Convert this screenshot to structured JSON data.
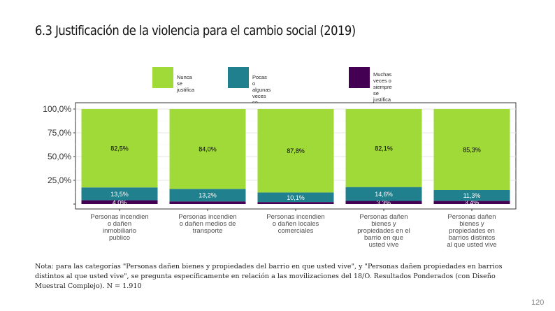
{
  "page": {
    "title": "6.3 Justificación de la violencia para el cambio social (2019)",
    "note": "Nota: para las categorías \"Personas dañen bienes y propiedades del barrio en que usted vive\", y \"Personas dañen propiedades en barrios distintos al que usted vive\", se pregunta específicamente en relación a las movilizaciones del 18/O. Resultados Ponderados (con Diseño Muestral Complejo). N = 1.910",
    "page_number": "120"
  },
  "chart_data": {
    "type": "bar",
    "stacked": true,
    "title": "",
    "xlabel": "",
    "ylabel": "",
    "ylim": [
      0,
      100
    ],
    "y_ticks": [
      "25,0%",
      "50,0%",
      "75,0%",
      "100,0%"
    ],
    "y_tick_values": [
      25,
      50,
      75,
      100
    ],
    "grid": true,
    "legend_position": "top",
    "categories": [
      "Personas incendien o dañen inmobiliario publico",
      "Personas incendien o dañen medios de transporte",
      "Personas incendien o dañen locales comerciales",
      "Personas dañen bienes y propiedades en el barrio en que usted vive",
      "Personas dañen bienes y propiedades en barrios distintos al que usted vive"
    ],
    "category_lines": [
      [
        "Personas incendien",
        "o dañen",
        "inmobiliario",
        "publico"
      ],
      [
        "Personas incendien",
        "o dañen medios de",
        "transporte"
      ],
      [
        "Personas incendien",
        "o dañen locales",
        "comerciales"
      ],
      [
        "Personas dañen",
        "bienes y",
        "propiedades en el",
        "barrio en que",
        "usted vive"
      ],
      [
        "Personas dañen",
        "bienes y",
        "propiedades en",
        "barrios distintos",
        "al que usted vive"
      ]
    ],
    "series": [
      {
        "name": "Muchas veces o siempre se justifica",
        "name_lines": [
          "Muchas veces o siempre se",
          "justifica"
        ],
        "color": "#440154",
        "label_color": "#ffffff",
        "values": [
          4.0,
          2.8,
          2.1,
          3.3,
          3.4
        ],
        "labels": [
          "4,0%",
          "",
          "",
          "3,3%",
          "3,4%"
        ]
      },
      {
        "name": "Pocas o algunas veces se justifica",
        "name_lines": [
          "Pocas o algunas veces se justifica"
        ],
        "color": "#21808d",
        "label_color": "#ffffff",
        "values": [
          13.5,
          13.2,
          10.1,
          14.6,
          11.3
        ],
        "labels": [
          "13,5%",
          "13,2%",
          "10,1%",
          "14,6%",
          "11,3%"
        ]
      },
      {
        "name": "Nunca se justifica",
        "name_lines": [
          "Nunca se justifica"
        ],
        "color": "#a0da39",
        "label_color": "#000000",
        "values": [
          82.5,
          84.0,
          87.8,
          82.1,
          85.3
        ],
        "labels": [
          "82,5%",
          "84,0%",
          "87,8%",
          "82,1%",
          "85,3%"
        ]
      }
    ],
    "legend_order": [
      2,
      1,
      0
    ]
  }
}
